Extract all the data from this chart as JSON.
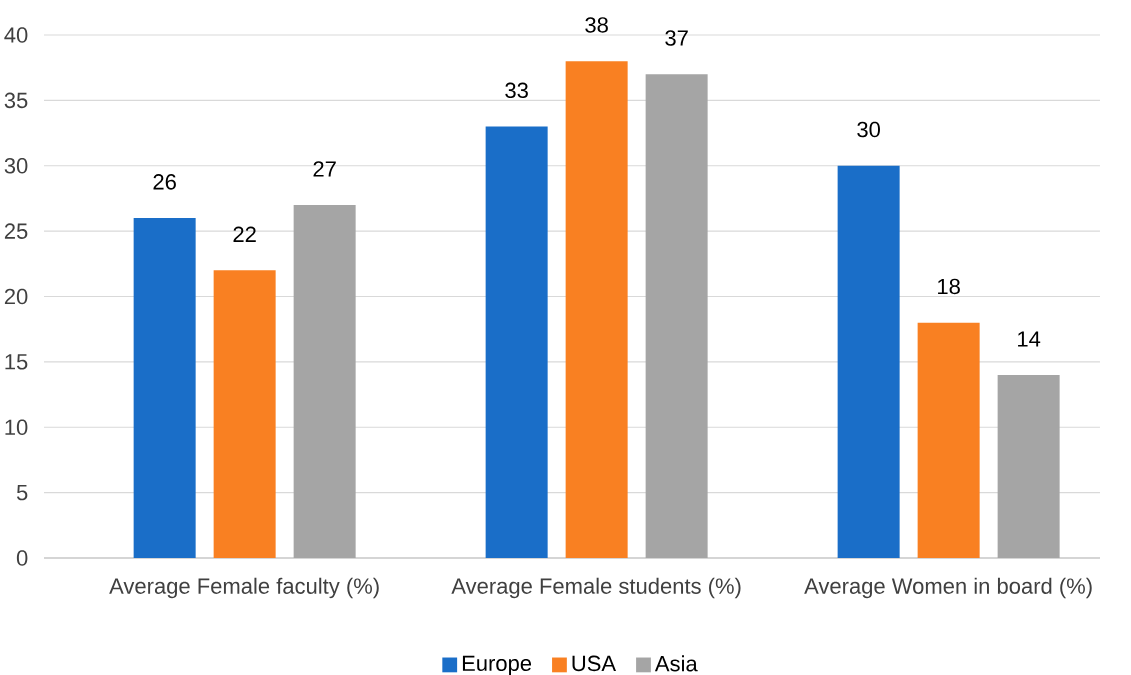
{
  "chart_data": {
    "type": "bar",
    "categories": [
      "Average Female faculty (%)",
      "Average Female students (%)",
      "Average Women in board (%)"
    ],
    "series": [
      {
        "name": "Europe",
        "color": "#1a6ec8",
        "values": [
          26,
          33,
          30
        ]
      },
      {
        "name": "USA",
        "color": "#f98022",
        "values": [
          22,
          38,
          18
        ]
      },
      {
        "name": "Asia",
        "color": "#a5a5a5",
        "values": [
          27,
          37,
          14
        ]
      }
    ],
    "ylim": [
      0,
      40
    ],
    "yticks": [
      0,
      5,
      10,
      15,
      20,
      25,
      30,
      35,
      40
    ],
    "grid": "y",
    "legend": "bottom",
    "data_labels": true
  }
}
